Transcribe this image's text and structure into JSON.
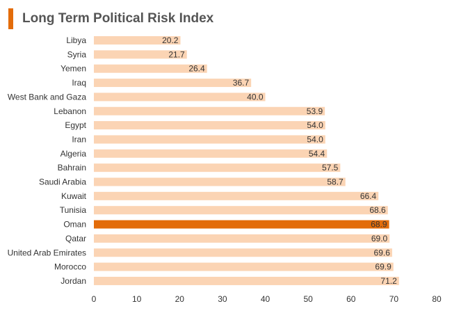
{
  "colors": {
    "accent": "#e36c0a",
    "bar": "#fbd4b4",
    "highlight": "#e36c0a"
  },
  "chart_data": {
    "type": "bar",
    "orientation": "horizontal",
    "title": "Long Term Political Risk Index",
    "xlabel": "",
    "ylabel": "",
    "xlim": [
      0,
      80
    ],
    "ticks": [
      0,
      10,
      20,
      30,
      40,
      50,
      60,
      70,
      80
    ],
    "grid": false,
    "highlight": "Oman",
    "categories": [
      "Libya",
      "Syria",
      "Yemen",
      "Iraq",
      "West Bank and Gaza",
      "Lebanon",
      "Egypt",
      "Iran",
      "Algeria",
      "Bahrain",
      "Saudi Arabia",
      "Kuwait",
      "Tunisia",
      "Oman",
      "Qatar",
      "United Arab Emirates",
      "Morocco",
      "Jordan"
    ],
    "values": [
      20.2,
      21.7,
      26.4,
      36.7,
      40.0,
      53.9,
      54.0,
      54.0,
      54.4,
      57.5,
      58.7,
      66.4,
      68.6,
      68.9,
      69.0,
      69.6,
      69.9,
      71.2
    ],
    "labels": [
      "20.2",
      "21.7",
      "26.4",
      "36.7",
      "40.0",
      "53.9",
      "54.0",
      "54.0",
      "54.4",
      "57.5",
      "58.7",
      "66.4",
      "68.6",
      "68.9",
      "69.0",
      "69.6",
      "69.9",
      "71.2"
    ]
  }
}
